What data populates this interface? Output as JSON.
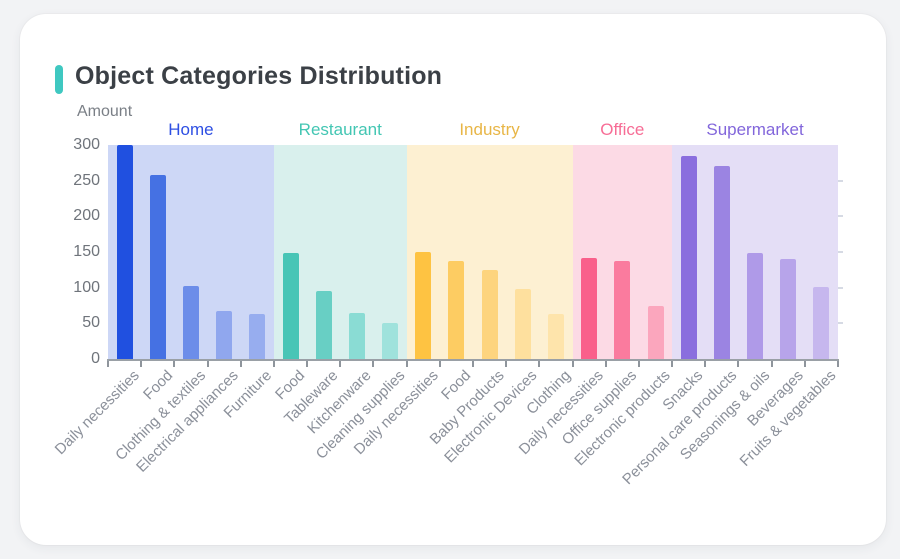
{
  "page": {
    "title": "Object Categories Distribution",
    "accent_color": "#3fc8c1",
    "card_bg": "#ffffff",
    "page_bg": "#f2f3f5"
  },
  "chart_data": {
    "type": "bar",
    "title": "Object Categories Distribution",
    "xlabel": "",
    "ylabel": "Amount",
    "ylim": [
      0,
      300
    ],
    "yticks": [
      0,
      50,
      100,
      150,
      200,
      250,
      300
    ],
    "grid": false,
    "legend_position": "top-inline-group-labels",
    "axis_line_color": "#9aa0a6",
    "groups": [
      {
        "name": "Home",
        "label_color": "#2e4fe3",
        "band_color": "#cdd7f6",
        "categories": [
          "Daily necessities",
          "Food",
          "Clothing & textiles",
          "Electrical appliances",
          "Furniture"
        ],
        "values": [
          300,
          258,
          102,
          68,
          63
        ],
        "bar_colors": [
          "#2050e0",
          "#4571e3",
          "#6c8de9",
          "#90a7ee",
          "#97adef"
        ]
      },
      {
        "name": "Restaurant",
        "label_color": "#43c6b3",
        "band_color": "#d9f0ed",
        "categories": [
          "Food",
          "Tableware",
          "Kitchenware",
          "Cleaning supplies"
        ],
        "values": [
          148,
          96,
          64,
          50
        ],
        "bar_colors": [
          "#48c5b6",
          "#68cfc4",
          "#8adcd4",
          "#9fe2dc"
        ]
      },
      {
        "name": "Industry",
        "label_color": "#e8b647",
        "band_color": "#fdf0d2",
        "categories": [
          "Daily necessities",
          "Food",
          "Baby Products",
          "Electronic Devices",
          "Clothing"
        ],
        "values": [
          150,
          138,
          125,
          98,
          63
        ],
        "bar_colors": [
          "#fec342",
          "#fdcc62",
          "#fdd47e",
          "#fee09e",
          "#fee4ab"
        ]
      },
      {
        "name": "Office",
        "label_color": "#f76d96",
        "band_color": "#fcdae5",
        "categories": [
          "Daily necessities",
          "Office supplies",
          "Electronic products"
        ],
        "values": [
          142,
          138,
          75
        ],
        "bar_colors": [
          "#f9608b",
          "#fa7b9e",
          "#fba6bd"
        ]
      },
      {
        "name": "Supermarket",
        "label_color": "#8266db",
        "band_color": "#e4def6",
        "categories": [
          "Snacks",
          "Personal care products",
          "Seasonings & oils",
          "Beverages",
          "Fruits & vegetables"
        ],
        "values": [
          284,
          271,
          148,
          140,
          101
        ],
        "bar_colors": [
          "#8a6ede",
          "#9b84e2",
          "#af9ae8",
          "#b7a4ea",
          "#c6b7ee"
        ]
      }
    ]
  }
}
